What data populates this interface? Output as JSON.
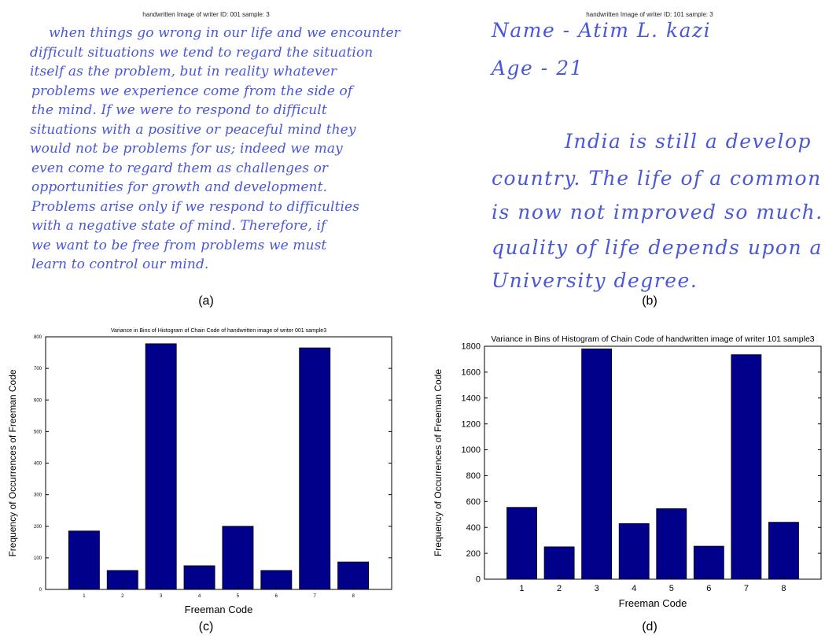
{
  "panel_a": {
    "title": "handwritten Image of writer ID: 001 sample: 3",
    "lines": [
      "when things go wrong in our life and we encounter",
      "difficult situations we tend to regard the situation",
      "itself as the problem, but in reality whatever",
      "problems we experience come from the side of",
      "the mind. If we were to respond to difficult",
      "situations with a positive or peaceful mind they",
      "would not be problems for us; indeed we may",
      "even come to regard them as challenges or",
      "opportunities for growth and development.",
      "Problems arise only if we respond to difficulties",
      "with a negative state of mind. Therefore, if",
      "we want to be free from problems we must",
      "learn to control our mind."
    ],
    "caption": "(a)"
  },
  "panel_b": {
    "title": "handwritten Image of writer ID: 101 sample: 3",
    "lines": [
      "Name -   Atim L. kazi",
      "Age -  21",
      "India  is  still  a  develop",
      "country. The life of a  common  r",
      "is now not  improved  so  much.",
      "quality of life depends upon  a",
      "University degree."
    ],
    "caption": "(b)"
  },
  "chart_data": [
    {
      "type": "bar",
      "title": "Variance in Bins of Histogram of Chain Code of handwritten image of writer 001 sample3",
      "xlabel": "Freeman Code",
      "ylabel": "Frequency of Occurrences of Freeman Code",
      "categories": [
        "1",
        "2",
        "3",
        "4",
        "5",
        "6",
        "7",
        "8"
      ],
      "values": [
        185,
        60,
        778,
        75,
        200,
        60,
        765,
        87
      ],
      "ylim": [
        0,
        800
      ],
      "yticks": [
        0,
        100,
        200,
        300,
        400,
        500,
        600,
        700,
        800
      ],
      "bar_color": "#00008b",
      "caption": "(c)"
    },
    {
      "type": "bar",
      "title": "Variance in Bins of Histogram of Chain Code of handwritten image of writer 101 sample3",
      "xlabel": "Freeman Code",
      "ylabel": "Frequency of Occurrences of Freeman Code",
      "categories": [
        "1",
        "2",
        "3",
        "4",
        "5",
        "6",
        "7",
        "8"
      ],
      "values": [
        555,
        250,
        1780,
        430,
        545,
        255,
        1735,
        440
      ],
      "ylim": [
        0,
        1800
      ],
      "yticks": [
        0,
        200,
        400,
        600,
        800,
        1000,
        1200,
        1400,
        1600,
        1800
      ],
      "bar_color": "#00008b",
      "caption": "(d)"
    }
  ]
}
